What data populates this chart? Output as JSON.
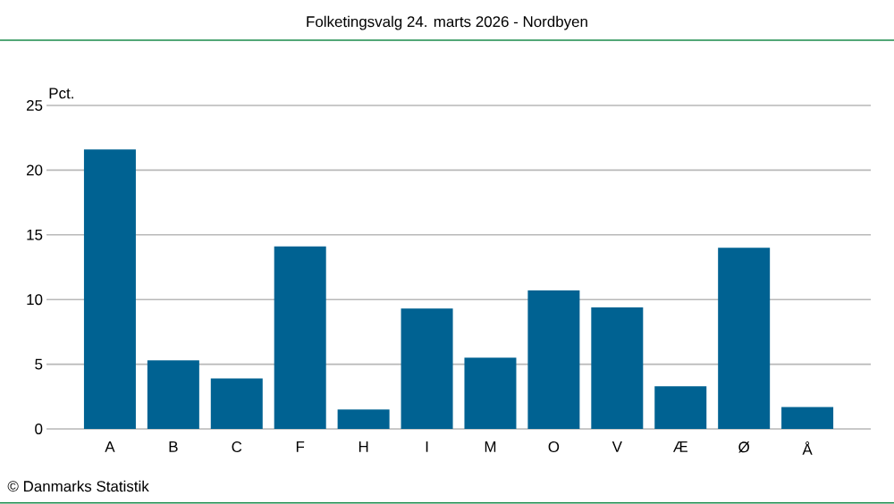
{
  "chart_data": {
    "type": "bar",
    "title": "Folketingsvalg 24. marts 2026 - Nordbyen",
    "ylabel": "Pct.",
    "categories": [
      "A",
      "B",
      "C",
      "F",
      "H",
      "I",
      "M",
      "O",
      "V",
      "Æ",
      "Ø",
      "Å"
    ],
    "values": [
      21.6,
      5.3,
      3.9,
      14.1,
      1.5,
      9.3,
      5.5,
      10.7,
      9.4,
      3.3,
      14.0,
      1.7
    ],
    "color": "#006292",
    "ylim": [
      0,
      25
    ],
    "yticks": [
      0,
      5,
      10,
      15,
      20,
      25
    ],
    "grid": "y",
    "annotations": [
      "© Danmarks Statistik"
    ]
  }
}
